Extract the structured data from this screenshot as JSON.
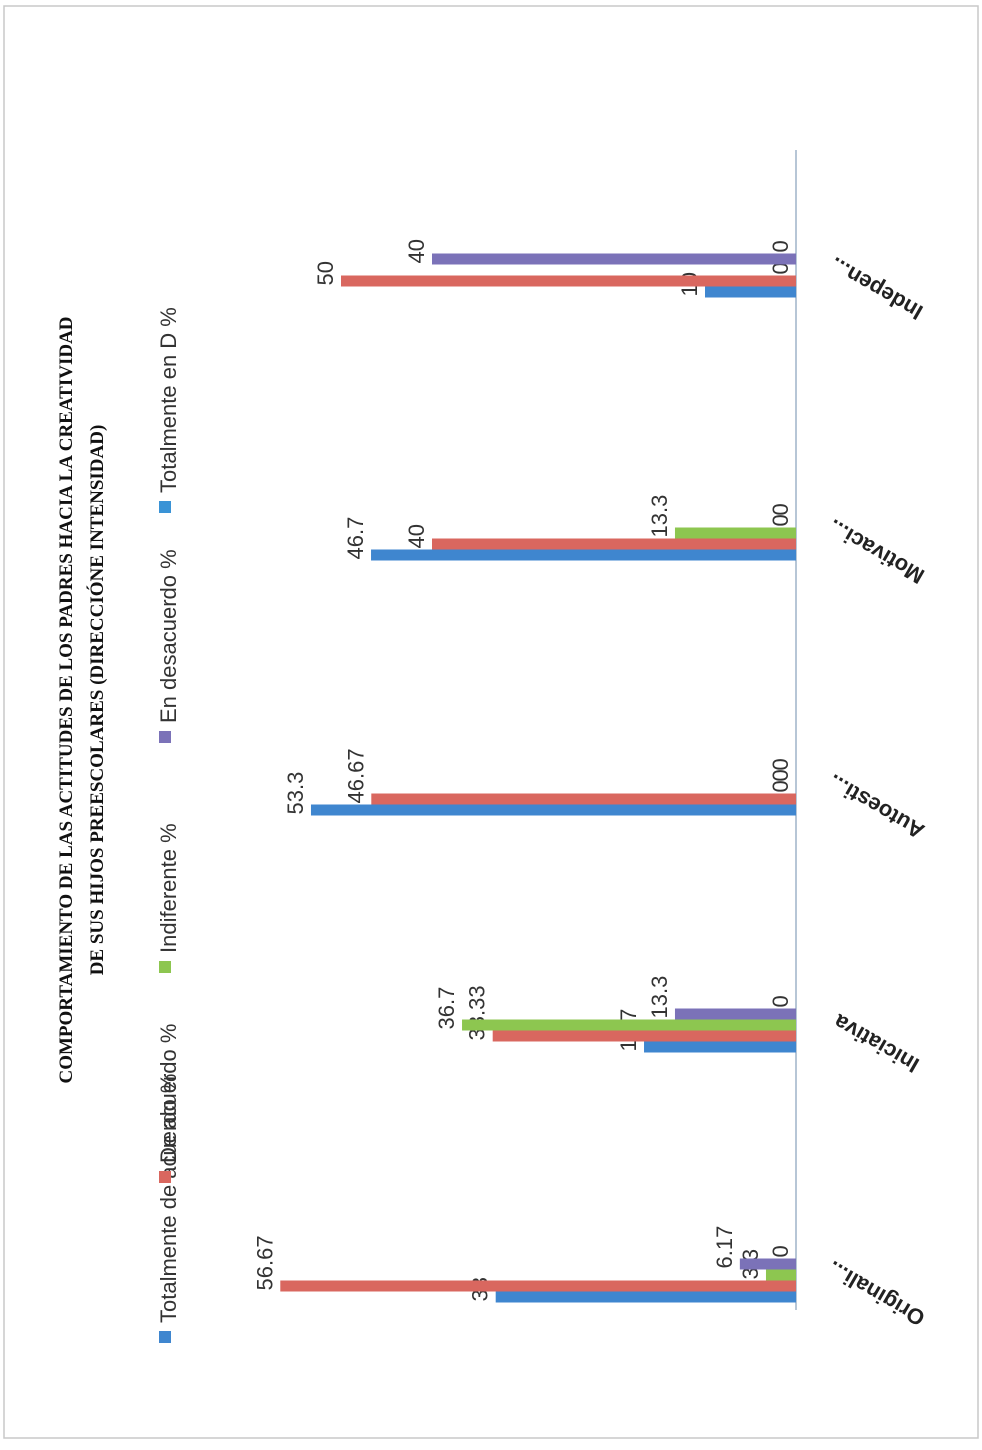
{
  "chart_data": {
    "type": "bar",
    "orientation": "horizontal (page rotated 90° counter-clockwise)",
    "title_line1": "COMPORTAMIENTO DE LAS ACTITUDES DE LOS PADRES HACIA LA CREATIVIDAD",
    "title_line2": "DE SUS HIJOS PREESCOLARES (DIRECCIÓNE INTENSIDAD)",
    "categories": [
      "Originali...",
      "Iniciativa",
      "Autoesti...",
      "Motivaci...",
      "Indepen..."
    ],
    "series": [
      {
        "name": "Totalmente de acuerdo %",
        "color": "#3f86cf",
        "values": [
          33,
          16.7,
          53.3,
          46.7,
          10
        ],
        "labels": [
          "33",
          "16.7",
          "53.3",
          "46.7",
          "10"
        ]
      },
      {
        "name": "De acuerdo %",
        "color": "#d9675f",
        "values": [
          56.67,
          33.33,
          46.67,
          40,
          50
        ],
        "labels": [
          "56.67",
          "33.33",
          "46.67",
          "40",
          "50"
        ]
      },
      {
        "name": "Indiferente %",
        "color": "#8dc650",
        "values": [
          3.3,
          36.7,
          0,
          13.3,
          0
        ],
        "labels": [
          "3.3",
          "36.7",
          "0",
          "13.3",
          "0"
        ]
      },
      {
        "name": "En desacuerdo %",
        "color": "#7b72b8",
        "values": [
          6.17,
          13.3,
          0,
          0,
          40
        ],
        "labels": [
          "6.17",
          "13.3",
          "0",
          "0",
          "40"
        ]
      },
      {
        "name": "Totalmente en D %",
        "color": "#3a93d6",
        "values": [
          0,
          0,
          0,
          0,
          0
        ],
        "labels": [
          "0",
          "0",
          "0",
          "0",
          "0"
        ]
      }
    ],
    "value_axis_range": [
      0,
      60
    ],
    "grid": false,
    "legend_position": "top"
  }
}
